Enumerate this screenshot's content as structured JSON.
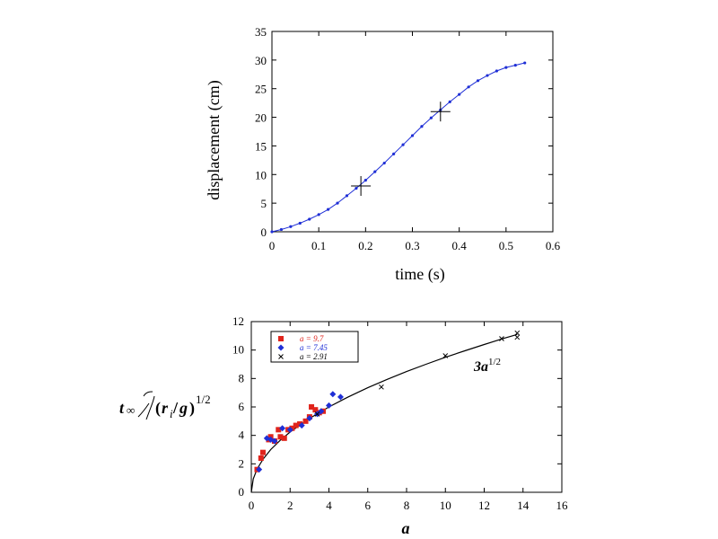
{
  "chart_data": [
    {
      "type": "line",
      "xlabel": "time (s)",
      "ylabel": "displacement (cm)",
      "xlim": [
        0,
        0.6
      ],
      "ylim": [
        0,
        35
      ],
      "xticks": [
        0,
        0.1,
        0.2,
        0.3,
        0.4,
        0.5,
        0.6
      ],
      "yticks": [
        0,
        5,
        10,
        15,
        20,
        25,
        30,
        35
      ],
      "xtick_labels": [
        "0",
        "0.1",
        "0.2",
        "0.3",
        "0.4",
        "0.5",
        "0.6"
      ],
      "ytick_labels": [
        "0",
        "5",
        "10",
        "15",
        "20",
        "25",
        "30",
        "35"
      ],
      "series": [
        {
          "name": "displacement",
          "color": "#1f2fd6",
          "x": [
            0,
            0.02,
            0.04,
            0.06,
            0.08,
            0.1,
            0.12,
            0.14,
            0.16,
            0.18,
            0.2,
            0.22,
            0.24,
            0.26,
            0.28,
            0.3,
            0.32,
            0.34,
            0.36,
            0.38,
            0.4,
            0.42,
            0.44,
            0.46,
            0.48,
            0.5,
            0.52,
            0.54
          ],
          "y": [
            0,
            0.4,
            0.9,
            1.5,
            2.2,
            3.0,
            3.9,
            5.0,
            6.3,
            7.6,
            9.0,
            10.5,
            12.0,
            13.6,
            15.2,
            16.8,
            18.4,
            19.9,
            21.3,
            22.7,
            24.0,
            25.3,
            26.4,
            27.3,
            28.1,
            28.7,
            29.1,
            29.5
          ]
        }
      ],
      "markers": [
        {
          "name": "plus-1",
          "x": 0.19,
          "y": 8
        },
        {
          "name": "plus-2",
          "x": 0.36,
          "y": 21
        }
      ]
    },
    {
      "type": "scatter",
      "xlabel": "a",
      "ylabel": "t∞/(ri/g)1/2",
      "ylabel_parts": {
        "t": "t",
        "inf": "∞",
        "r": "r",
        "i": "i",
        "g": "g",
        "exp": "1/2"
      },
      "xlim": [
        0,
        16
      ],
      "ylim": [
        0,
        12
      ],
      "xticks": [
        0,
        2,
        4,
        6,
        8,
        10,
        12,
        14,
        16
      ],
      "yticks": [
        0,
        2,
        4,
        6,
        8,
        10,
        12
      ],
      "xtick_labels": [
        "0",
        "2",
        "4",
        "6",
        "8",
        "10",
        "12",
        "14",
        "16"
      ],
      "ytick_labels": [
        "0",
        "2",
        "4",
        "6",
        "8",
        "10",
        "12"
      ],
      "series": [
        {
          "name": "a = 9.7",
          "color": "#e0241c",
          "marker": "square",
          "x": [
            0.3,
            0.5,
            0.6,
            0.9,
            1.0,
            1.2,
            1.4,
            1.5,
            1.7,
            1.9,
            2.1,
            2.3,
            2.5,
            2.8,
            3.0,
            3.1,
            3.3,
            3.5,
            3.7
          ],
          "y": [
            1.6,
            2.4,
            2.8,
            3.7,
            3.9,
            3.6,
            4.4,
            3.9,
            3.8,
            4.4,
            4.5,
            4.7,
            4.8,
            5.0,
            5.3,
            6.0,
            5.8,
            5.6,
            5.7
          ]
        },
        {
          "name": "a = 7.45",
          "color": "#1f2fd6",
          "marker": "diamond",
          "x": [
            0.4,
            0.8,
            1.0,
            1.2,
            1.6,
            2.0,
            2.6,
            3.0,
            3.4,
            3.6,
            4.0,
            4.2,
            4.6
          ],
          "y": [
            1.6,
            3.8,
            3.7,
            3.6,
            4.5,
            4.4,
            4.7,
            5.2,
            5.5,
            5.7,
            6.1,
            6.9,
            6.7
          ]
        },
        {
          "name": "a = 2.91",
          "color": "#000000",
          "marker": "x",
          "x": [
            3.4,
            6.7,
            10.0,
            12.9,
            13.7,
            13.7
          ],
          "y": [
            5.5,
            7.4,
            9.6,
            10.8,
            10.9,
            11.2
          ]
        }
      ],
      "fit_line": {
        "label": "3a1/2",
        "label_prefix": "3",
        "label_var": "a",
        "label_exp": "1/2",
        "color": "#000000",
        "x": [
          0,
          0.1,
          0.3,
          0.6,
          1,
          1.5,
          2,
          3,
          4,
          5,
          6,
          7,
          8,
          9,
          10,
          11,
          12,
          13,
          13.7
        ],
        "y": [
          0,
          0.95,
          1.64,
          2.32,
          3.0,
          3.67,
          4.24,
          5.2,
          6.0,
          6.71,
          7.35,
          7.94,
          8.49,
          9.0,
          9.49,
          9.95,
          10.39,
          10.82,
          11.1
        ]
      },
      "legend": {
        "placement": "top-left",
        "entries": [
          {
            "label": "a = 9.7",
            "color": "#e0241c",
            "marker": "square"
          },
          {
            "label": "a = 7.45",
            "color": "#1f2fd6",
            "marker": "diamond"
          },
          {
            "label": "a = 2.91",
            "color": "#000000",
            "marker": "x"
          }
        ]
      }
    }
  ]
}
